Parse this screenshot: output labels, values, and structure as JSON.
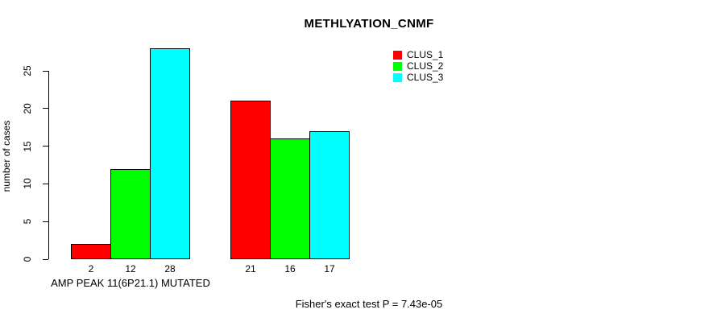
{
  "chart_data": {
    "type": "bar",
    "title": "METHLYATION_CNMF",
    "xlabel": "",
    "ylabel": "number of cases",
    "ylim": [
      0,
      25
    ],
    "yticks": [
      0,
      5,
      10,
      15,
      20,
      25
    ],
    "grid": false,
    "legend_position": "top-right",
    "series": [
      {
        "name": "CLUS_1",
        "color": "#ff0000",
        "values": [
          2,
          21
        ]
      },
      {
        "name": "CLUS_2",
        "color": "#00ff00",
        "values": [
          12,
          16
        ]
      },
      {
        "name": "CLUS_3",
        "color": "#00ffff",
        "values": [
          28,
          17
        ]
      }
    ],
    "groups": [
      "AMP PEAK 11(6P21.1) MUTATED",
      ""
    ],
    "bar_value_labels": [
      [
        2,
        12,
        28
      ],
      [
        21,
        16,
        17
      ]
    ],
    "annotation": "Fisher's exact test P = 7.43e-05"
  }
}
